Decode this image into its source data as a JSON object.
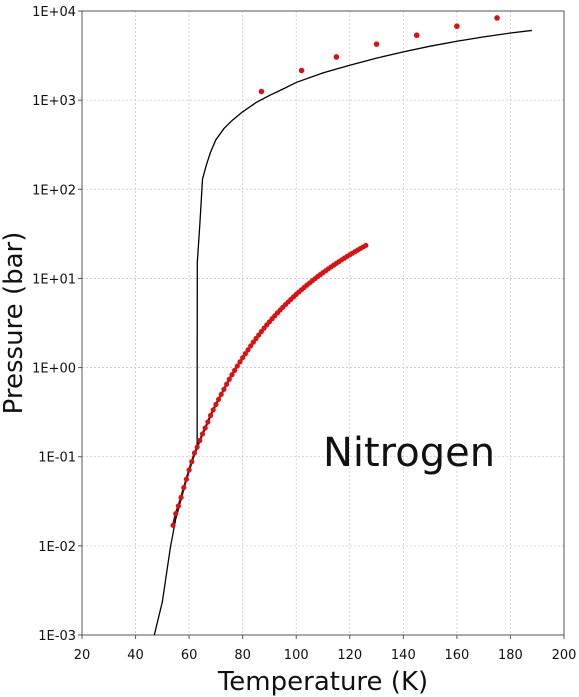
{
  "chart_data": {
    "type": "scatter",
    "xlabel": "Temperature (K)",
    "ylabel": "Pressure (bar)",
    "annotation": "Nitrogen",
    "xlim": [
      20,
      200
    ],
    "ylim": [
      0.001,
      10000
    ],
    "y_scale": "log",
    "grid": true,
    "x_ticks": [
      "20",
      "40",
      "60",
      "80",
      "100",
      "120",
      "140",
      "160",
      "180",
      "200"
    ],
    "y_ticks": [
      "1E-03",
      "1E-02",
      "1E-01",
      "1E+00",
      "1E+01",
      "1E+02",
      "1E+03",
      "1E+04"
    ],
    "colors": {
      "points": "#dd1111",
      "line": "#000000",
      "saturation_line": "#551111"
    },
    "series": [
      {
        "kind": "line",
        "points": [
          [
            47,
            0.001
          ],
          [
            50,
            0.00235
          ],
          [
            53,
            0.0096
          ],
          [
            55,
            0.02
          ],
          [
            57,
            0.033
          ],
          [
            59,
            0.055
          ],
          [
            61,
            0.085
          ],
          [
            62,
            0.105
          ],
          [
            63,
            0.125
          ],
          [
            63.05,
            15
          ],
          [
            64,
            40
          ],
          [
            65,
            130
          ],
          [
            66.5,
            190
          ],
          [
            68,
            260
          ],
          [
            70,
            360
          ],
          [
            73,
            480
          ],
          [
            76,
            590
          ],
          [
            80,
            740
          ],
          [
            85,
            940
          ],
          [
            90,
            1130
          ],
          [
            95,
            1330
          ],
          [
            100,
            1580
          ],
          [
            110,
            2020
          ],
          [
            120,
            2460
          ],
          [
            130,
            2960
          ],
          [
            140,
            3480
          ],
          [
            150,
            4030
          ],
          [
            160,
            4580
          ],
          [
            170,
            5130
          ],
          [
            180,
            5660
          ],
          [
            188,
            6050
          ]
        ]
      },
      {
        "kind": "solid-points",
        "points": [
          [
            87,
            1250
          ],
          [
            102,
            2150
          ],
          [
            115,
            3050
          ],
          [
            130,
            4250
          ],
          [
            145,
            5350
          ],
          [
            160,
            6750
          ],
          [
            175,
            8350
          ]
        ]
      },
      {
        "kind": "saturation-points",
        "points": [
          [
            54,
            0.017
          ],
          [
            55,
            0.023
          ],
          [
            56,
            0.028
          ],
          [
            57,
            0.035
          ],
          [
            58,
            0.045
          ],
          [
            59,
            0.056
          ],
          [
            60,
            0.071
          ],
          [
            61,
            0.088
          ],
          [
            62,
            0.11
          ],
          [
            63,
            0.128
          ],
          [
            64,
            0.152
          ],
          [
            65,
            0.18
          ],
          [
            66,
            0.21
          ],
          [
            67,
            0.245
          ],
          [
            68,
            0.29
          ],
          [
            69,
            0.335
          ],
          [
            70,
            0.385
          ],
          [
            71,
            0.44
          ],
          [
            72,
            0.5
          ],
          [
            73,
            0.57
          ],
          [
            74,
            0.65
          ],
          [
            75,
            0.74
          ],
          [
            76,
            0.83
          ],
          [
            77,
            0.93
          ],
          [
            78,
            1.04
          ],
          [
            79,
            1.16
          ],
          [
            80,
            1.29
          ],
          [
            81,
            1.43
          ],
          [
            82,
            1.58
          ],
          [
            83,
            1.75
          ],
          [
            84,
            1.93
          ],
          [
            85,
            2.12
          ],
          [
            86,
            2.32
          ],
          [
            87,
            2.54
          ],
          [
            88,
            2.77
          ],
          [
            89,
            3.01
          ],
          [
            90,
            3.26
          ],
          [
            91,
            3.53
          ],
          [
            92,
            3.81
          ],
          [
            93,
            4.11
          ],
          [
            94,
            4.42
          ],
          [
            95,
            4.75
          ],
          [
            96,
            5.09
          ],
          [
            97,
            5.45
          ],
          [
            98,
            5.82
          ],
          [
            99,
            6.21
          ],
          [
            100,
            6.62
          ],
          [
            101,
            7.04
          ],
          [
            102,
            7.48
          ],
          [
            103,
            7.94
          ],
          [
            104,
            8.41
          ],
          [
            105,
            8.9
          ],
          [
            106,
            9.41
          ],
          [
            107,
            9.93
          ],
          [
            108,
            10.47
          ],
          [
            109,
            11.03
          ],
          [
            110,
            11.61
          ],
          [
            111,
            12.2
          ],
          [
            112,
            12.82
          ],
          [
            113,
            13.45
          ],
          [
            114,
            14.1
          ],
          [
            115,
            14.77
          ],
          [
            116,
            15.46
          ],
          [
            117,
            16.17
          ],
          [
            118,
            16.9
          ],
          [
            119,
            17.65
          ],
          [
            120,
            18.42
          ],
          [
            121,
            19.2
          ],
          [
            122,
            20.01
          ],
          [
            123,
            20.84
          ],
          [
            124,
            21.69
          ],
          [
            125,
            22.56
          ],
          [
            126,
            23.45
          ]
        ]
      }
    ]
  }
}
